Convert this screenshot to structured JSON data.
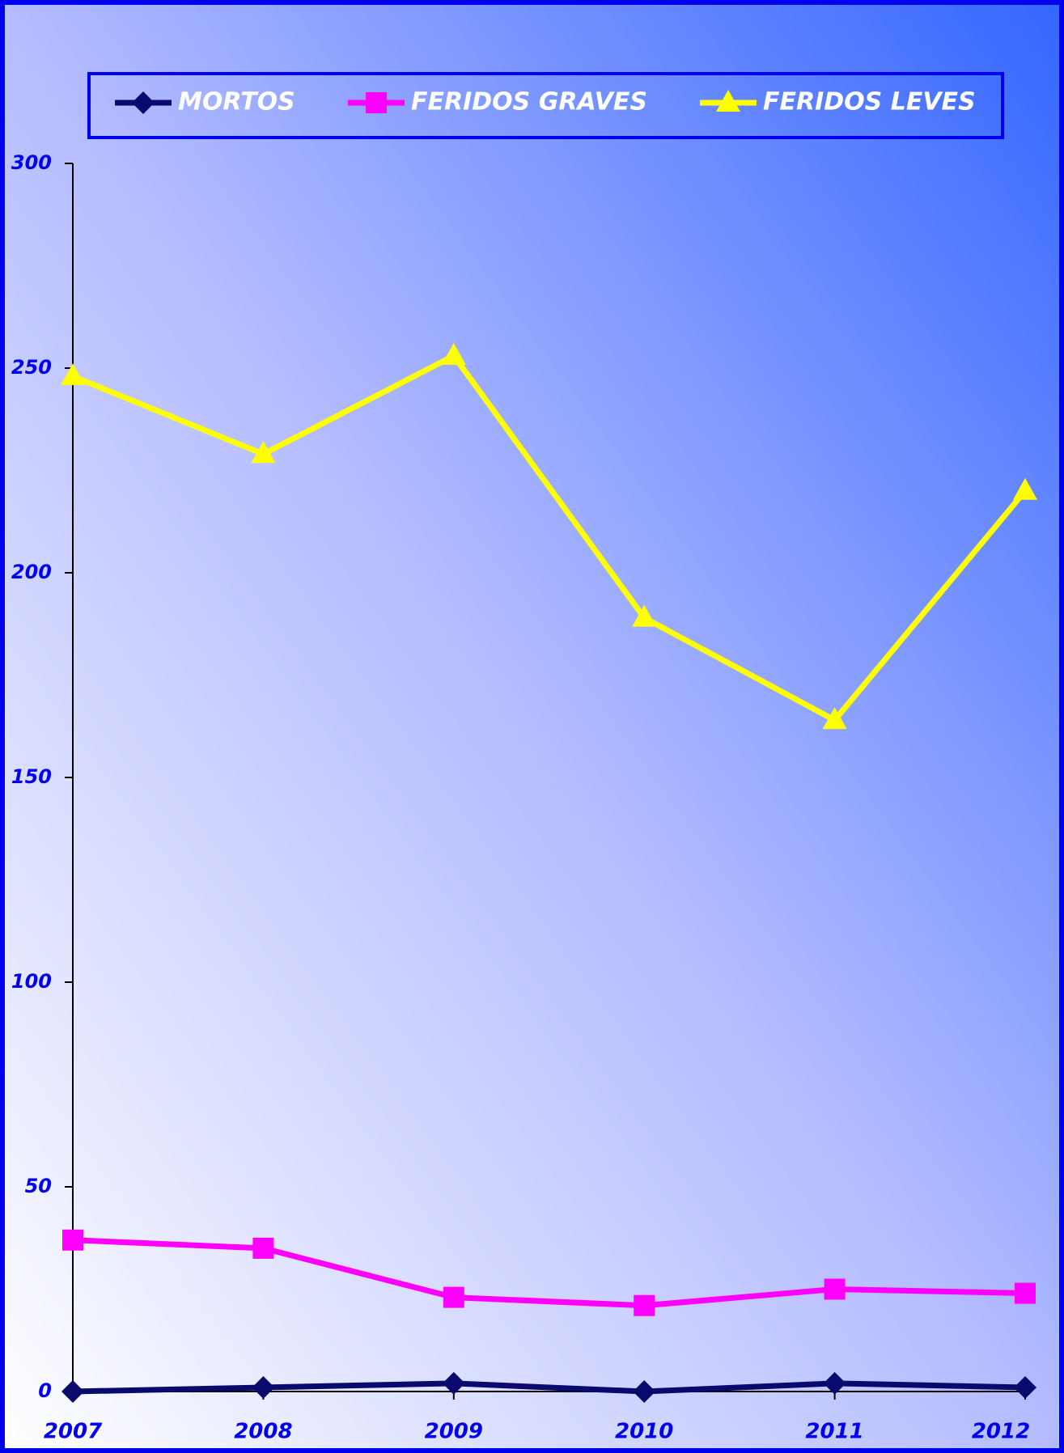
{
  "chart_data": {
    "type": "line",
    "categories": [
      "2007",
      "2008",
      "2009",
      "2010",
      "2011",
      "2012"
    ],
    "series": [
      {
        "name": "MORTOS",
        "color": "#0a0a6e",
        "marker": "diamond",
        "values": [
          0,
          1,
          2,
          0,
          2,
          1
        ]
      },
      {
        "name": "FERIDOS GRAVES",
        "color": "#ff00ff",
        "marker": "square",
        "values": [
          37,
          35,
          23,
          21,
          25,
          24
        ]
      },
      {
        "name": "FERIDOS LEVES",
        "color": "#ffff00",
        "marker": "triangle",
        "values": [
          248,
          229,
          253,
          189,
          164,
          220
        ]
      }
    ],
    "ylim": [
      0,
      300
    ],
    "yticks": [
      0,
      50,
      100,
      150,
      200,
      250,
      300
    ],
    "legend": "top"
  }
}
